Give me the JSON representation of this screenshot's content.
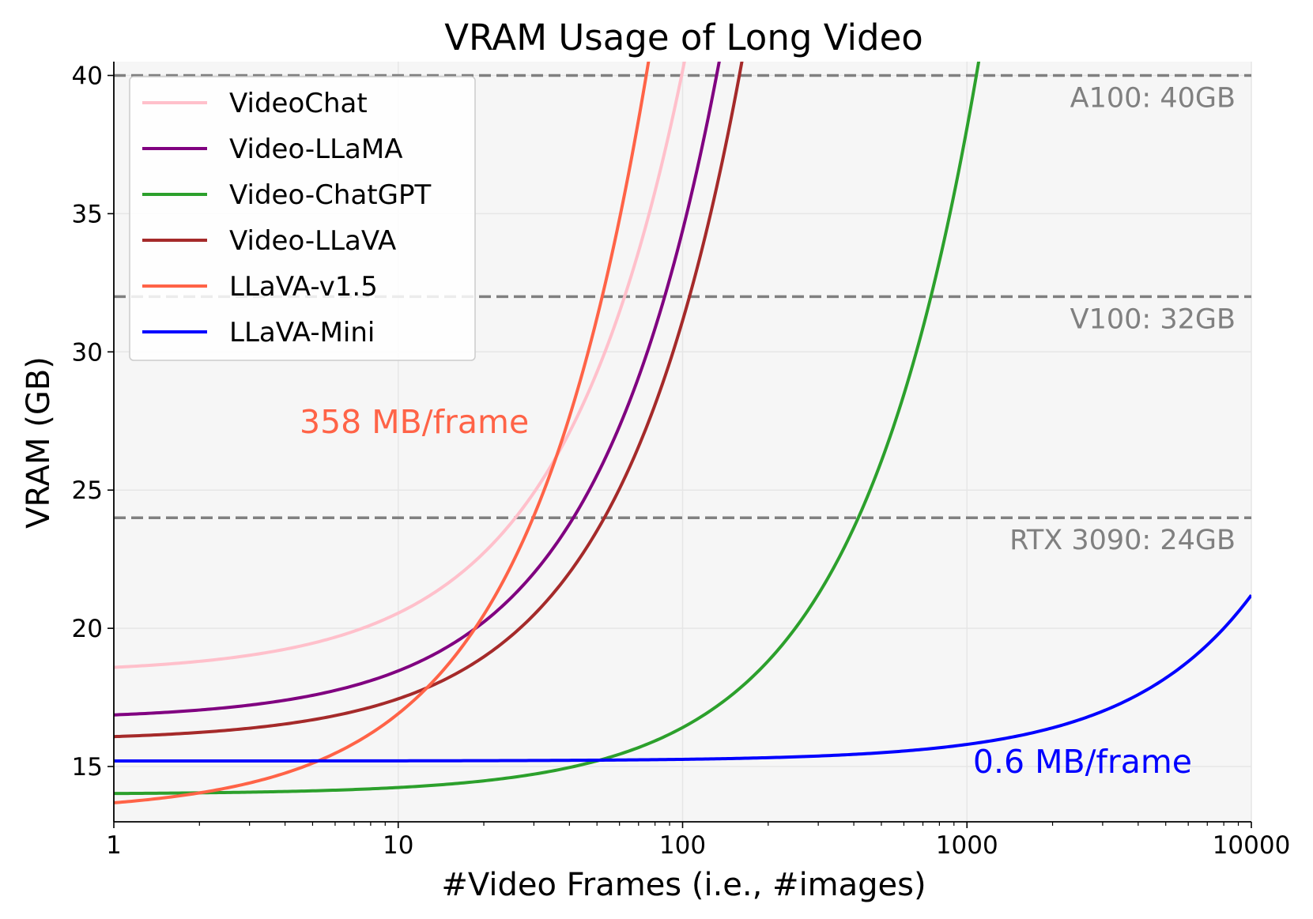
{
  "chart_data": {
    "type": "line",
    "title": "VRAM Usage of Long Video",
    "xlabel": "#Video Frames (i.e., #images)",
    "ylabel": "VRAM (GB)",
    "x_scale": "log",
    "xlim": [
      1,
      10000
    ],
    "ylim": [
      13,
      40.5
    ],
    "x_ticks": [
      1,
      10,
      100,
      1000,
      10000
    ],
    "x_tick_labels": [
      "1",
      "10",
      "100",
      "1000",
      "10000"
    ],
    "y_ticks": [
      15,
      20,
      25,
      30,
      35,
      40
    ],
    "y_tick_labels": [
      "15",
      "20",
      "25",
      "30",
      "35",
      "40"
    ],
    "grid": true,
    "legend_position": "top-left",
    "background_color": "#f6f6f6",
    "series": [
      {
        "name": "VideoChat",
        "color": "#ffc0cb",
        "base": 18.37,
        "per_frame": 0.218
      },
      {
        "name": "Video-LLaMA",
        "color": "#800080",
        "base": 16.69,
        "per_frame": 0.177
      },
      {
        "name": "Video-ChatGPT",
        "color": "#2ca02c",
        "base": 14.0,
        "per_frame": 0.0241
      },
      {
        "name": "Video-LLaVA",
        "color": "#a52a2a",
        "base": 15.93,
        "per_frame": 0.152
      },
      {
        "name": "LLaVA-v1.5",
        "color": "#ff6347",
        "base": 13.33,
        "per_frame": 0.358
      },
      {
        "name": "LLaVA-Mini",
        "color": "#0000ff",
        "base": 15.2,
        "per_frame": 0.0006
      }
    ],
    "reference_lines": [
      {
        "y": 40,
        "label": "A100: 40GB"
      },
      {
        "y": 32,
        "label": "V100: 32GB"
      },
      {
        "y": 24,
        "label": "RTX 3090: 24GB"
      }
    ],
    "annotations": [
      {
        "text": "358 MB/frame",
        "color": "#ff6347",
        "x": 4.5,
        "y": 27.5
      },
      {
        "text": "0.6 MB/frame",
        "color": "#0000ff",
        "x": 1050,
        "y": 15.2
      }
    ]
  }
}
